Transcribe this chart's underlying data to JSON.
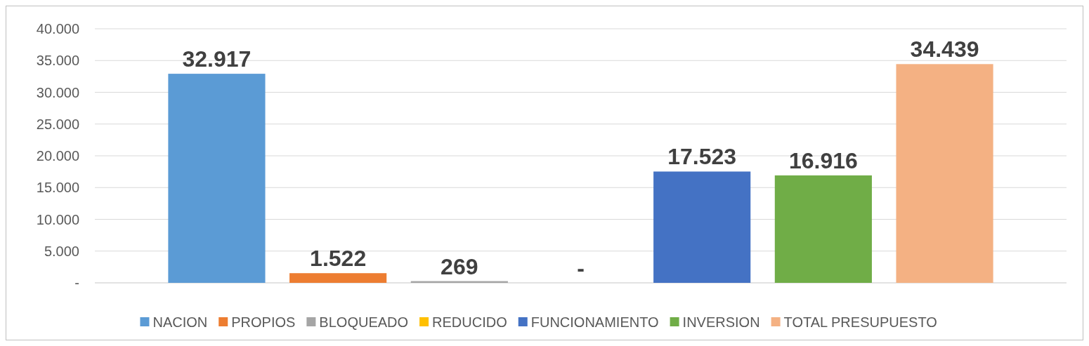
{
  "chart_data": {
    "type": "bar",
    "categories": [
      null
    ],
    "series": [
      {
        "name": "NACION",
        "color": "#5b9bd5",
        "values": [
          32917
        ],
        "value_labels": [
          "32.917"
        ]
      },
      {
        "name": "PROPIOS",
        "color": "#ed7d31",
        "values": [
          1522
        ],
        "value_labels": [
          "1.522"
        ]
      },
      {
        "name": "BLOQUEADO",
        "color": "#a5a5a5",
        "values": [
          269
        ],
        "value_labels": [
          "269"
        ]
      },
      {
        "name": "REDUCIDO",
        "color": "#ffc000",
        "values": [
          0
        ],
        "value_labels": [
          "-"
        ]
      },
      {
        "name": "FUNCIONAMIENTO",
        "color": "#4472c4",
        "values": [
          17523
        ],
        "value_labels": [
          "17.523"
        ]
      },
      {
        "name": "INVERSION",
        "color": "#70ad47",
        "values": [
          16916
        ],
        "value_labels": [
          "16.916"
        ]
      },
      {
        "name": "TOTAL PRESUPUESTO",
        "color": "#f4b183",
        "values": [
          34439
        ],
        "value_labels": [
          "34.439"
        ]
      }
    ],
    "ylim": [
      0,
      40000
    ],
    "yticks": [
      {
        "value": 0,
        "label": "-"
      },
      {
        "value": 5000,
        "label": "5.000"
      },
      {
        "value": 10000,
        "label": "10.000"
      },
      {
        "value": 15000,
        "label": "15.000"
      },
      {
        "value": 20000,
        "label": "20.000"
      },
      {
        "value": 25000,
        "label": "25.000"
      },
      {
        "value": 30000,
        "label": "30.000"
      },
      {
        "value": 35000,
        "label": "35.000"
      },
      {
        "value": 40000,
        "label": "40.000"
      }
    ],
    "grid": "y",
    "legend": "bottom",
    "tick_labels": "y"
  }
}
